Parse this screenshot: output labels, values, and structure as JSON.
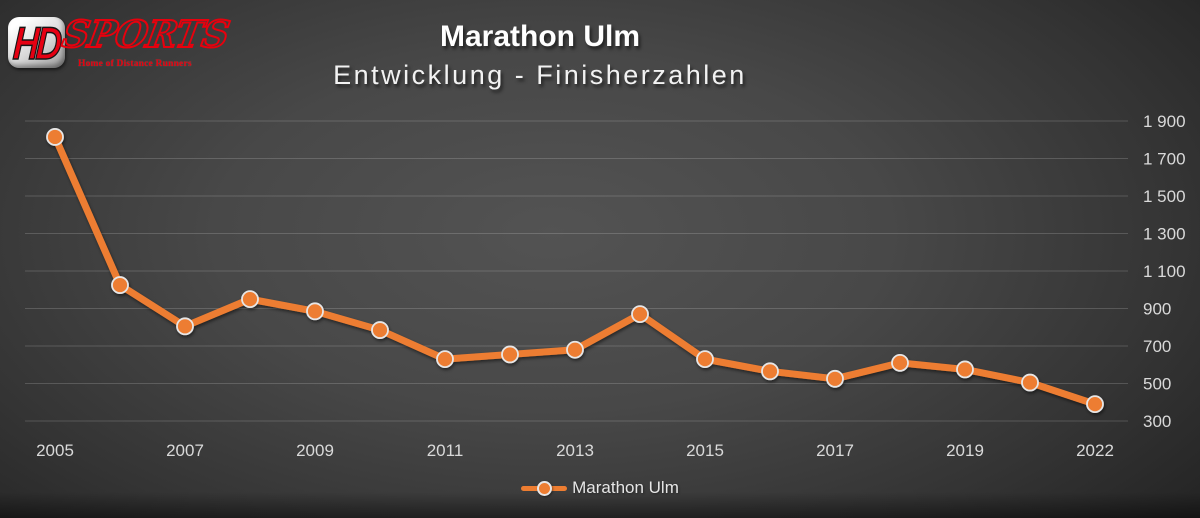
{
  "logo": {
    "hd": "HD",
    "sports": "SPORTS",
    "tagline": "Home of Distance Runners"
  },
  "header": {
    "title": "Marathon Ulm",
    "subtitle": "Entwicklung - Finisherzahlen"
  },
  "legend": {
    "label": "Marathon Ulm"
  },
  "colors": {
    "line": "#ED7D31",
    "marker_fill": "#ED7D31",
    "marker_stroke": "#E7E6E6",
    "grid": "rgba(255,255,255,0.17)",
    "axis_text": "#D9D9D9",
    "title_text": "#FFFFFF",
    "logo_red": "#E8000D"
  },
  "chart_data": {
    "type": "line",
    "title": "Marathon Ulm",
    "subtitle": "Entwicklung - Finisherzahlen",
    "categories": [
      "2005",
      "2006",
      "2007",
      "2008",
      "2009",
      "2010",
      "2011",
      "2012",
      "2013",
      "2014",
      "2015",
      "2016",
      "2017",
      "2018",
      "2019",
      "2021",
      "2022"
    ],
    "series": [
      {
        "name": "Marathon Ulm",
        "values": [
          1815,
          1025,
          805,
          950,
          885,
          785,
          630,
          655,
          680,
          870,
          630,
          565,
          525,
          610,
          575,
          505,
          390
        ]
      }
    ],
    "x_tick_labels": [
      "2005",
      "2007",
      "2009",
      "2011",
      "2013",
      "2015",
      "2017",
      "2019",
      "2022"
    ],
    "y_axis": {
      "side": "right",
      "ticks": [
        {
          "v": 1900,
          "label": "1 900"
        },
        {
          "v": 1700,
          "label": "1 700"
        },
        {
          "v": 1500,
          "label": "1 500"
        },
        {
          "v": 1300,
          "label": "1 300"
        },
        {
          "v": 1100,
          "label": "1 100"
        },
        {
          "v": 900,
          "label": "900"
        },
        {
          "v": 700,
          "label": "700"
        },
        {
          "v": 500,
          "label": "500"
        },
        {
          "v": 300,
          "label": "300"
        }
      ]
    },
    "ylim": [
      300,
      1900
    ],
    "grid": "horizontal",
    "legend_position": "bottom"
  }
}
